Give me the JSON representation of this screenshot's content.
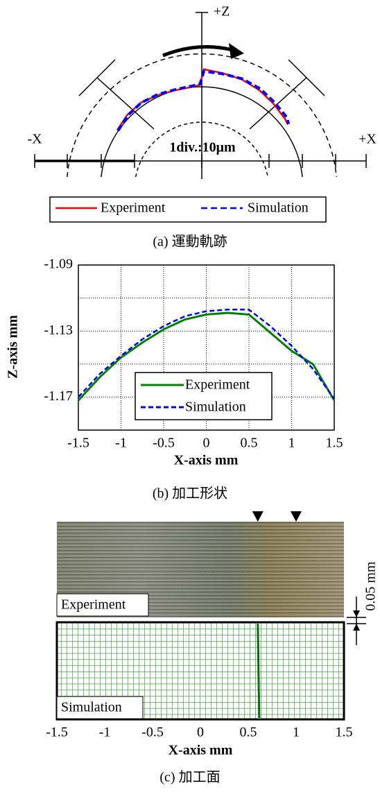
{
  "chart_data": [
    {
      "type": "trajectory",
      "axis_labels": [
        "+Z",
        "-X",
        "+X"
      ],
      "annotation": "1div.:10μm",
      "division_um": 10,
      "theta": [
        145,
        135,
        125,
        115,
        105,
        95,
        91,
        89,
        80,
        70,
        60,
        50,
        40,
        37
      ],
      "series": [
        {
          "name": "Experiment",
          "color": "#ff0000",
          "values": [
            0.6,
            1.2,
            1.4,
            0.8,
            0.4,
            0.5,
            1.0,
            5.6,
            5.0,
            4.7,
            4.0,
            3.1,
            2.3,
            1.9
          ]
        },
        {
          "name": "Simulation",
          "color": "#0000ff",
          "values": [
            0.3,
            1.0,
            1.3,
            1.0,
            0.6,
            0.8,
            1.2,
            5.0,
            4.8,
            4.9,
            4.5,
            3.6,
            3.0,
            2.2
          ]
        }
      ],
      "caption": "(a) 運動軌跡"
    },
    {
      "type": "line",
      "xlabel": "X-axis mm",
      "ylabel": "Z-axis mm",
      "x": [
        -1.5,
        -1.25,
        -1,
        -0.75,
        -0.5,
        -0.25,
        0,
        0.25,
        0.5,
        0.75,
        1,
        1.25,
        1.5
      ],
      "series": [
        {
          "name": "Experiment",
          "color": "#008000",
          "values": [
            -1.172,
            -1.158,
            -1.146,
            -1.137,
            -1.129,
            -1.123,
            -1.12,
            -1.119,
            -1.12,
            -1.131,
            -1.142,
            -1.15,
            -1.172
          ]
        },
        {
          "name": "Simulation",
          "color": "#0000ff",
          "values": [
            -1.17,
            -1.156,
            -1.145,
            -1.135,
            -1.127,
            -1.121,
            -1.118,
            -1.117,
            -1.117,
            -1.127,
            -1.139,
            -1.153,
            -1.171
          ]
        }
      ],
      "xlim": [
        -1.5,
        1.5
      ],
      "xticks": [
        -1.5,
        -1,
        -0.5,
        0,
        0.5,
        1,
        1.5
      ],
      "ylim": [
        -1.19,
        -1.09
      ],
      "yticks": [
        -1.09,
        -1.13,
        -1.17
      ],
      "ygrid": [
        -1.09,
        -1.11,
        -1.13,
        -1.15,
        -1.17
      ],
      "grid": true,
      "caption": "(b) 加工形状"
    },
    {
      "type": "surface",
      "labels": [
        "Experiment",
        "Simulation"
      ],
      "scale_label": "0.05 mm",
      "markers": [
        0.6,
        1.0
      ],
      "boundary": 0.6,
      "xlabel": "X-axis mm",
      "xlim": [
        -1.5,
        1.5
      ],
      "xticks": [
        -1.5,
        -1,
        -0.5,
        0,
        0.5,
        1,
        1.5
      ],
      "caption": "(c) 加工面"
    }
  ]
}
